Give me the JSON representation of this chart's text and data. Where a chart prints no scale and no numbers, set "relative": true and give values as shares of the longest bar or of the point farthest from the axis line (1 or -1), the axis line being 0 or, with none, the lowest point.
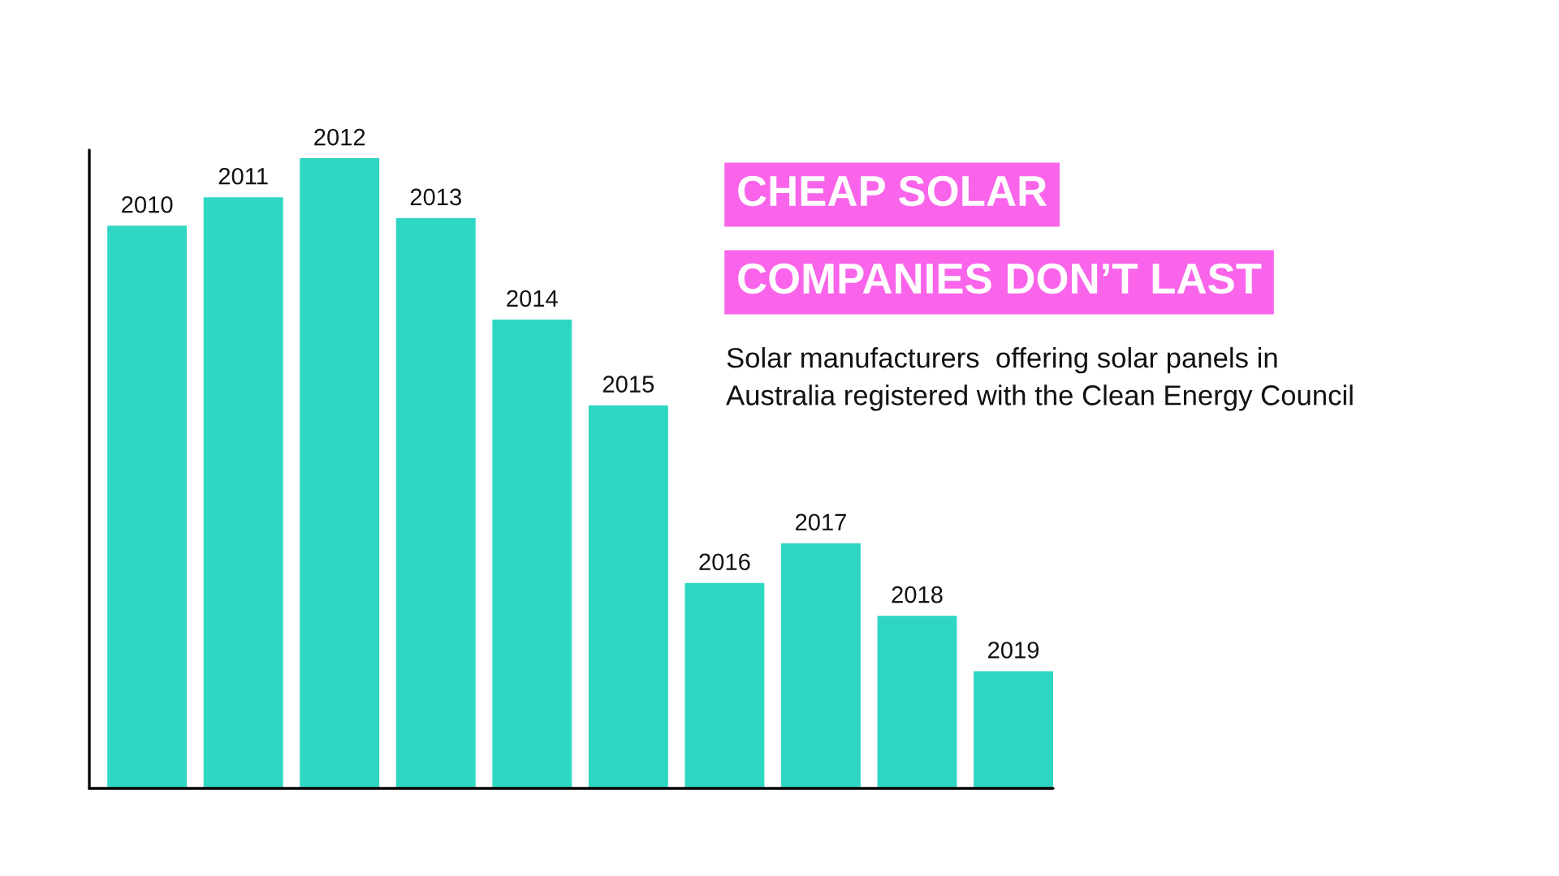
{
  "chart_data": {
    "type": "bar",
    "title": "CHEAP SOLAR\nCOMPANIES DON’T LAST",
    "subtitle": "Solar manufacturers  offering solar panels in\nAustralia registered with the Clean Energy Council",
    "categories": [
      "2010",
      "2011",
      "2012",
      "2013",
      "2014",
      "2015",
      "2016",
      "2017",
      "2018",
      "2019"
    ],
    "values": [
      0.893,
      0.938,
      1,
      0.905,
      0.744,
      0.608,
      0.326,
      0.389,
      0.274,
      0.186
    ],
    "color": "#30d6c4",
    "relative": true
  }
}
